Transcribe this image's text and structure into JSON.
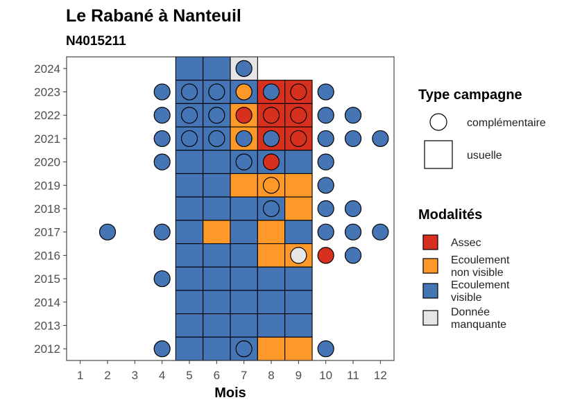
{
  "chart_data": {
    "type": "heatmap",
    "title": "Le Rabané à Nanteuil",
    "subtitle": "N4015211",
    "xlabel": "Mois",
    "ylabel": "",
    "x_ticks": [
      1,
      2,
      3,
      4,
      5,
      6,
      7,
      8,
      9,
      10,
      11,
      12
    ],
    "y_ticks": [
      2012,
      2013,
      2014,
      2015,
      2016,
      2017,
      2018,
      2019,
      2020,
      2021,
      2022,
      2023,
      2024
    ],
    "xlim": [
      0.5,
      12.5
    ],
    "ylim": [
      2011.5,
      2024.5
    ],
    "colors": {
      "assec": "#d7301f",
      "ecoulement_non_visible": "#fe9929",
      "ecoulement_visible": "#4575b4",
      "donnee_manquante": "#e6e6e6"
    },
    "usuelle": [
      {
        "month": 5,
        "year": 2024,
        "mod": "ecoulement_visible"
      },
      {
        "month": 6,
        "year": 2024,
        "mod": "ecoulement_visible"
      },
      {
        "month": 7,
        "year": 2024,
        "mod": "donnee_manquante"
      },
      {
        "month": 5,
        "year": 2023,
        "mod": "ecoulement_visible"
      },
      {
        "month": 6,
        "year": 2023,
        "mod": "ecoulement_visible"
      },
      {
        "month": 7,
        "year": 2023,
        "mod": "ecoulement_visible"
      },
      {
        "month": 8,
        "year": 2023,
        "mod": "assec"
      },
      {
        "month": 9,
        "year": 2023,
        "mod": "assec"
      },
      {
        "month": 5,
        "year": 2022,
        "mod": "ecoulement_visible"
      },
      {
        "month": 6,
        "year": 2022,
        "mod": "ecoulement_visible"
      },
      {
        "month": 7,
        "year": 2022,
        "mod": "ecoulement_non_visible"
      },
      {
        "month": 8,
        "year": 2022,
        "mod": "assec"
      },
      {
        "month": 9,
        "year": 2022,
        "mod": "assec"
      },
      {
        "month": 5,
        "year": 2021,
        "mod": "ecoulement_visible"
      },
      {
        "month": 6,
        "year": 2021,
        "mod": "ecoulement_visible"
      },
      {
        "month": 7,
        "year": 2021,
        "mod": "ecoulement_non_visible"
      },
      {
        "month": 8,
        "year": 2021,
        "mod": "assec"
      },
      {
        "month": 9,
        "year": 2021,
        "mod": "assec"
      },
      {
        "month": 5,
        "year": 2020,
        "mod": "ecoulement_visible"
      },
      {
        "month": 6,
        "year": 2020,
        "mod": "ecoulement_visible"
      },
      {
        "month": 7,
        "year": 2020,
        "mod": "ecoulement_visible"
      },
      {
        "month": 8,
        "year": 2020,
        "mod": "ecoulement_visible"
      },
      {
        "month": 9,
        "year": 2020,
        "mod": "ecoulement_visible"
      },
      {
        "month": 5,
        "year": 2019,
        "mod": "ecoulement_visible"
      },
      {
        "month": 6,
        "year": 2019,
        "mod": "ecoulement_visible"
      },
      {
        "month": 7,
        "year": 2019,
        "mod": "ecoulement_non_visible"
      },
      {
        "month": 8,
        "year": 2019,
        "mod": "ecoulement_non_visible"
      },
      {
        "month": 9,
        "year": 2019,
        "mod": "ecoulement_non_visible"
      },
      {
        "month": 5,
        "year": 2018,
        "mod": "ecoulement_visible"
      },
      {
        "month": 6,
        "year": 2018,
        "mod": "ecoulement_visible"
      },
      {
        "month": 7,
        "year": 2018,
        "mod": "ecoulement_visible"
      },
      {
        "month": 8,
        "year": 2018,
        "mod": "ecoulement_visible"
      },
      {
        "month": 9,
        "year": 2018,
        "mod": "ecoulement_non_visible"
      },
      {
        "month": 5,
        "year": 2017,
        "mod": "ecoulement_visible"
      },
      {
        "month": 6,
        "year": 2017,
        "mod": "ecoulement_non_visible"
      },
      {
        "month": 7,
        "year": 2017,
        "mod": "ecoulement_visible"
      },
      {
        "month": 8,
        "year": 2017,
        "mod": "ecoulement_non_visible"
      },
      {
        "month": 9,
        "year": 2017,
        "mod": "ecoulement_visible"
      },
      {
        "month": 5,
        "year": 2016,
        "mod": "ecoulement_visible"
      },
      {
        "month": 6,
        "year": 2016,
        "mod": "ecoulement_visible"
      },
      {
        "month": 7,
        "year": 2016,
        "mod": "ecoulement_visible"
      },
      {
        "month": 8,
        "year": 2016,
        "mod": "ecoulement_non_visible"
      },
      {
        "month": 9,
        "year": 2016,
        "mod": "ecoulement_non_visible"
      },
      {
        "month": 5,
        "year": 2015,
        "mod": "ecoulement_visible"
      },
      {
        "month": 6,
        "year": 2015,
        "mod": "ecoulement_visible"
      },
      {
        "month": 7,
        "year": 2015,
        "mod": "ecoulement_visible"
      },
      {
        "month": 8,
        "year": 2015,
        "mod": "ecoulement_visible"
      },
      {
        "month": 9,
        "year": 2015,
        "mod": "ecoulement_visible"
      },
      {
        "month": 5,
        "year": 2014,
        "mod": "ecoulement_visible"
      },
      {
        "month": 6,
        "year": 2014,
        "mod": "ecoulement_visible"
      },
      {
        "month": 7,
        "year": 2014,
        "mod": "ecoulement_visible"
      },
      {
        "month": 8,
        "year": 2014,
        "mod": "ecoulement_visible"
      },
      {
        "month": 9,
        "year": 2014,
        "mod": "ecoulement_visible"
      },
      {
        "month": 5,
        "year": 2013,
        "mod": "ecoulement_visible"
      },
      {
        "month": 6,
        "year": 2013,
        "mod": "ecoulement_visible"
      },
      {
        "month": 7,
        "year": 2013,
        "mod": "ecoulement_visible"
      },
      {
        "month": 8,
        "year": 2013,
        "mod": "ecoulement_visible"
      },
      {
        "month": 9,
        "year": 2013,
        "mod": "ecoulement_visible"
      },
      {
        "month": 5,
        "year": 2012,
        "mod": "ecoulement_visible"
      },
      {
        "month": 6,
        "year": 2012,
        "mod": "ecoulement_visible"
      },
      {
        "month": 7,
        "year": 2012,
        "mod": "ecoulement_visible"
      },
      {
        "month": 8,
        "year": 2012,
        "mod": "ecoulement_non_visible"
      },
      {
        "month": 9,
        "year": 2012,
        "mod": "ecoulement_non_visible"
      }
    ],
    "complementaire": [
      {
        "month": 7,
        "year": 2024,
        "mod": "ecoulement_visible"
      },
      {
        "month": 4,
        "year": 2023,
        "mod": "ecoulement_visible"
      },
      {
        "month": 5,
        "year": 2023,
        "mod": "ecoulement_visible"
      },
      {
        "month": 6,
        "year": 2023,
        "mod": "ecoulement_visible"
      },
      {
        "month": 7,
        "year": 2023,
        "mod": "ecoulement_non_visible"
      },
      {
        "month": 8,
        "year": 2023,
        "mod": "ecoulement_visible"
      },
      {
        "month": 9,
        "year": 2023,
        "mod": "assec"
      },
      {
        "month": 10,
        "year": 2023,
        "mod": "ecoulement_visible"
      },
      {
        "month": 4,
        "year": 2022,
        "mod": "ecoulement_visible"
      },
      {
        "month": 5,
        "year": 2022,
        "mod": "ecoulement_visible"
      },
      {
        "month": 6,
        "year": 2022,
        "mod": "ecoulement_visible"
      },
      {
        "month": 7,
        "year": 2022,
        "mod": "assec"
      },
      {
        "month": 8,
        "year": 2022,
        "mod": "assec"
      },
      {
        "month": 9,
        "year": 2022,
        "mod": "assec"
      },
      {
        "month": 10,
        "year": 2022,
        "mod": "ecoulement_visible"
      },
      {
        "month": 11,
        "year": 2022,
        "mod": "ecoulement_visible"
      },
      {
        "month": 4,
        "year": 2021,
        "mod": "ecoulement_visible"
      },
      {
        "month": 5,
        "year": 2021,
        "mod": "ecoulement_visible"
      },
      {
        "month": 6,
        "year": 2021,
        "mod": "ecoulement_visible"
      },
      {
        "month": 7,
        "year": 2021,
        "mod": "ecoulement_visible"
      },
      {
        "month": 8,
        "year": 2021,
        "mod": "ecoulement_visible"
      },
      {
        "month": 9,
        "year": 2021,
        "mod": "assec"
      },
      {
        "month": 10,
        "year": 2021,
        "mod": "ecoulement_visible"
      },
      {
        "month": 11,
        "year": 2021,
        "mod": "ecoulement_visible"
      },
      {
        "month": 12,
        "year": 2021,
        "mod": "ecoulement_visible"
      },
      {
        "month": 4,
        "year": 2020,
        "mod": "ecoulement_visible"
      },
      {
        "month": 7,
        "year": 2020,
        "mod": "ecoulement_visible"
      },
      {
        "month": 8,
        "year": 2020,
        "mod": "assec"
      },
      {
        "month": 10,
        "year": 2020,
        "mod": "ecoulement_visible"
      },
      {
        "month": 8,
        "year": 2019,
        "mod": "ecoulement_non_visible"
      },
      {
        "month": 10,
        "year": 2019,
        "mod": "ecoulement_visible"
      },
      {
        "month": 8,
        "year": 2018,
        "mod": "ecoulement_visible"
      },
      {
        "month": 10,
        "year": 2018,
        "mod": "ecoulement_visible"
      },
      {
        "month": 11,
        "year": 2018,
        "mod": "ecoulement_visible"
      },
      {
        "month": 2,
        "year": 2017,
        "mod": "ecoulement_visible"
      },
      {
        "month": 4,
        "year": 2017,
        "mod": "ecoulement_visible"
      },
      {
        "month": 10,
        "year": 2017,
        "mod": "ecoulement_visible"
      },
      {
        "month": 11,
        "year": 2017,
        "mod": "ecoulement_visible"
      },
      {
        "month": 12,
        "year": 2017,
        "mod": "ecoulement_visible"
      },
      {
        "month": 9,
        "year": 2016,
        "mod": "donnee_manquante"
      },
      {
        "month": 10,
        "year": 2016,
        "mod": "assec"
      },
      {
        "month": 11,
        "year": 2016,
        "mod": "ecoulement_visible"
      },
      {
        "month": 4,
        "year": 2015,
        "mod": "ecoulement_visible"
      },
      {
        "month": 4,
        "year": 2012,
        "mod": "ecoulement_visible"
      },
      {
        "month": 7,
        "year": 2012,
        "mod": "ecoulement_visible"
      },
      {
        "month": 10,
        "year": 2012,
        "mod": "ecoulement_visible"
      }
    ]
  },
  "legend": {
    "type_title": "Type campagne",
    "type_items": [
      {
        "shape": "circle",
        "label": "complémentaire"
      },
      {
        "shape": "square",
        "label": "usuelle"
      }
    ],
    "mod_title": "Modalités",
    "mod_items": [
      {
        "key": "assec",
        "lines": [
          "Assec"
        ]
      },
      {
        "key": "ecoulement_non_visible",
        "lines": [
          "Ecoulement",
          "non visible"
        ]
      },
      {
        "key": "ecoulement_visible",
        "lines": [
          "Ecoulement",
          "visible"
        ]
      },
      {
        "key": "donnee_manquante",
        "lines": [
          "Donnée",
          "manquante"
        ]
      }
    ]
  }
}
